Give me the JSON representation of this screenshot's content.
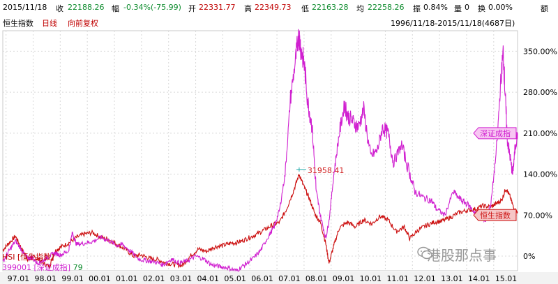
{
  "quote_bar": {
    "date": "2015/11/18",
    "close_label": "收",
    "close_value": "22188.26",
    "change_label": "幅",
    "change_value": "-0.34%(-75.99)",
    "open_label": "开",
    "open_value": "22331.77",
    "high_label": "高",
    "high_value": "22349.73",
    "low_label": "低",
    "low_value": "22163.28",
    "avg_label": "均",
    "avg_value": "22258.26",
    "amp_label": "振",
    "amp_value": "0.84%",
    "vol_label": "量",
    "vol_value": "0",
    "turnover_label": "换",
    "turnover_value": "0.00%",
    "amount_label": "额"
  },
  "chart_header": {
    "index_name": "恒生指数",
    "period": "日线",
    "adjust": "向前复权",
    "range": "1996/11/18-2015/11/18(4687日)"
  },
  "chart_data": {
    "type": "line",
    "x_ticks": [
      "97.01",
      "98.01",
      "99.01",
      "00.01",
      "01.01",
      "02.01",
      "03.01",
      "04.01",
      "05.01",
      "06.01",
      "07.01",
      "08.01",
      "09.01",
      "10.01",
      "11.01",
      "12.01",
      "13.01",
      "14.01",
      "15.01"
    ],
    "y_ticks": [
      "350.00%",
      "280.00%",
      "210.00%",
      "140.00%",
      "70.00%",
      "0%"
    ],
    "ylim": [
      -25,
      385
    ],
    "xlim": [
      1996.88,
      2015.88
    ],
    "grid": true,
    "annotation": {
      "text": "31958.41",
      "x": 2007.82,
      "y": 148
    },
    "series": [
      {
        "name": "恒生指数",
        "code": "HSI",
        "legend_label": "HSI [恒生指数]",
        "tag": "恒生指数",
        "color": "#cc1010",
        "x": [
          1996.88,
          1997.1,
          1997.35,
          1997.58,
          1997.8,
          1997.95,
          1998.15,
          1998.35,
          1998.6,
          1998.8,
          1999.0,
          1999.3,
          1999.6,
          1999.9,
          2000.2,
          2000.5,
          2000.8,
          2001.1,
          2001.4,
          2001.7,
          2002.0,
          2002.3,
          2002.6,
          2002.9,
          2003.2,
          2003.5,
          2003.8,
          2004.1,
          2004.4,
          2004.7,
          2005.0,
          2005.3,
          2005.6,
          2005.9,
          2006.2,
          2006.5,
          2006.8,
          2007.1,
          2007.35,
          2007.6,
          2007.82,
          2008.0,
          2008.2,
          2008.4,
          2008.6,
          2008.8,
          2008.92,
          2009.1,
          2009.3,
          2009.6,
          2009.9,
          2010.2,
          2010.5,
          2010.8,
          2011.1,
          2011.4,
          2011.7,
          2011.9,
          2012.2,
          2012.5,
          2012.8,
          2013.1,
          2013.4,
          2013.7,
          2014.0,
          2014.3,
          2014.6,
          2014.9,
          2015.1,
          2015.3,
          2015.45,
          2015.6,
          2015.75,
          2015.88
        ],
        "values": [
          10,
          22,
          34,
          12,
          -5,
          -2,
          -4,
          -12,
          -18,
          8,
          15,
          22,
          32,
          38,
          40,
          32,
          28,
          20,
          12,
          0,
          2,
          -4,
          -6,
          -12,
          -14,
          -16,
          0,
          12,
          8,
          16,
          18,
          22,
          24,
          30,
          36,
          44,
          52,
          58,
          80,
          110,
          140,
          118,
          98,
          72,
          58,
          22,
          -12,
          18,
          48,
          58,
          50,
          62,
          55,
          68,
          62,
          42,
          50,
          30,
          44,
          52,
          58,
          60,
          66,
          74,
          78,
          80,
          86,
          84,
          90,
          96,
          116,
          102,
          80,
          76
        ]
      },
      {
        "name": "深证成指",
        "code": "399001",
        "legend_label": "399001 [深证成指]",
        "legend_value": "79",
        "tag": "深证成指",
        "color": "#d020d0",
        "x": [
          1996.88,
          1997.1,
          1997.35,
          1997.58,
          1997.8,
          1997.95,
          1998.15,
          1998.35,
          1998.6,
          1998.8,
          1999.0,
          1999.3,
          1999.45,
          1999.6,
          1999.9,
          2000.2,
          2000.5,
          2000.8,
          2001.1,
          2001.3,
          2001.6,
          2001.9,
          2002.2,
          2002.5,
          2002.8,
          2003.1,
          2003.4,
          2003.7,
          2004.0,
          2004.3,
          2004.6,
          2004.9,
          2005.2,
          2005.5,
          2005.8,
          2006.1,
          2006.4,
          2006.7,
          2006.9,
          2007.1,
          2007.3,
          2007.5,
          2007.7,
          2007.8,
          2007.9,
          2008.0,
          2008.15,
          2008.3,
          2008.45,
          2008.6,
          2008.8,
          2008.92,
          2009.1,
          2009.3,
          2009.5,
          2009.6,
          2009.8,
          2010.0,
          2010.2,
          2010.45,
          2010.7,
          2010.9,
          2011.1,
          2011.3,
          2011.6,
          2011.9,
          2012.1,
          2012.4,
          2012.7,
          2012.9,
          2013.2,
          2013.5,
          2013.8,
          2014.0,
          2014.3,
          2014.5,
          2014.7,
          2014.9,
          2015.1,
          2015.25,
          2015.35,
          2015.42,
          2015.5,
          2015.6,
          2015.7,
          2015.78,
          2015.88
        ],
        "values": [
          -10,
          8,
          26,
          10,
          -5,
          -2,
          -12,
          -8,
          0,
          5,
          2,
          8,
          40,
          20,
          22,
          25,
          32,
          26,
          18,
          20,
          8,
          -5,
          -8,
          -10,
          -15,
          -5,
          -12,
          -8,
          0,
          -5,
          -15,
          -18,
          -20,
          -25,
          -15,
          -5,
          10,
          35,
          50,
          80,
          140,
          270,
          340,
          380,
          350,
          330,
          260,
          220,
          110,
          70,
          30,
          60,
          140,
          210,
          260,
          240,
          230,
          220,
          250,
          170,
          180,
          220,
          210,
          160,
          190,
          140,
          110,
          100,
          95,
          80,
          70,
          110,
          95,
          90,
          75,
          70,
          60,
          90,
          180,
          290,
          350,
          280,
          200,
          170,
          140,
          180,
          210
        ]
      }
    ]
  },
  "watermark": {
    "text": "港股那点事",
    "icon": "wechat-bubble-icon"
  }
}
